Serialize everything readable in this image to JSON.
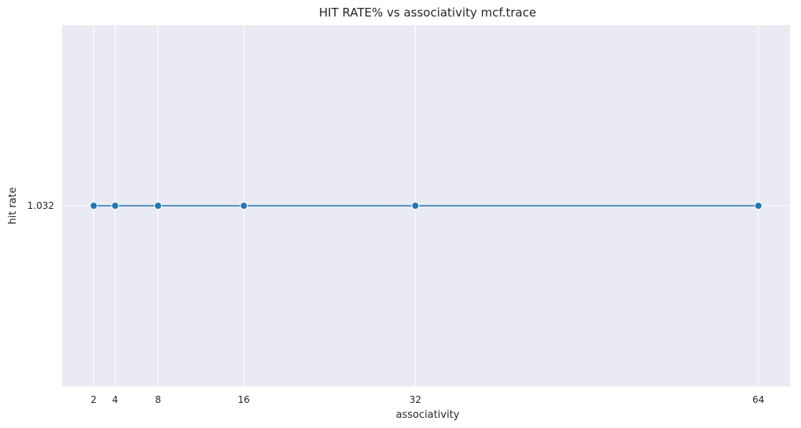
{
  "chart_data": {
    "type": "line",
    "title": "HIT RATE% vs associativity mcf.trace",
    "xlabel": "associativity",
    "ylabel": "hit rate",
    "x": [
      2,
      4,
      8,
      16,
      32,
      64
    ],
    "series": [
      {
        "values": [
          1.032,
          1.032,
          1.032,
          1.032,
          1.032,
          1.032
        ]
      }
    ],
    "x_ticks": [
      "2",
      "4",
      "8",
      "16",
      "32",
      "64"
    ],
    "y_ticks": [
      "1.032"
    ],
    "xlim": [
      -0.95,
      66.95
    ],
    "ylim": [
      1.022,
      1.042
    ],
    "grid": true,
    "colors": {
      "background": "#eaeaf2",
      "grid": "#ffffff",
      "line": "#1f77b4",
      "marker_edge": "#ffffff"
    }
  }
}
